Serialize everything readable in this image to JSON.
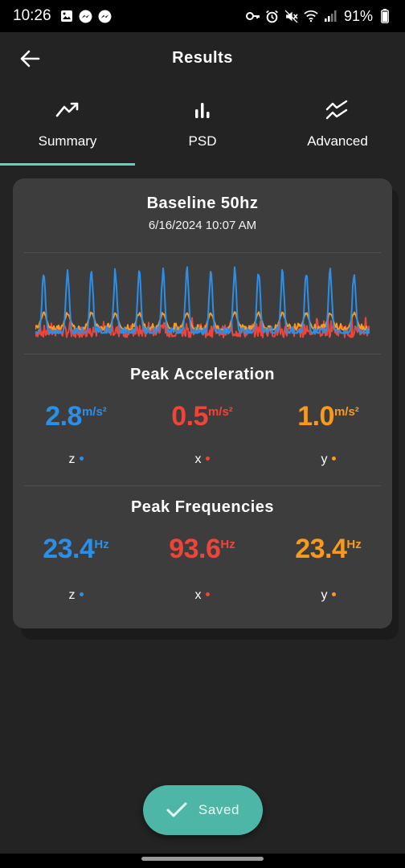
{
  "status_bar": {
    "time": "10:26",
    "battery": "91%",
    "left_icons": [
      "gallery-icon",
      "messenger-icon",
      "messenger-icon"
    ],
    "right_icons": [
      "key-icon",
      "alarm-icon",
      "mute-icon",
      "wifi-icon",
      "signal-icon",
      "battery-icon"
    ]
  },
  "header": {
    "title": "Results"
  },
  "tabs": [
    {
      "label": "Summary",
      "icon": "trend-icon",
      "active": true
    },
    {
      "label": "PSD",
      "icon": "bar-chart-icon",
      "active": false
    },
    {
      "label": "Advanced",
      "icon": "double-trend-icon",
      "active": false
    }
  ],
  "card": {
    "title": "Baseline 50hz",
    "date": "6/16/2024 10:07 AM",
    "peak_acceleration": {
      "title": "Peak Acceleration",
      "items": [
        {
          "axis": "z",
          "value": "2.8",
          "unit": "m/s²",
          "color": "#2b8fe8"
        },
        {
          "axis": "x",
          "value": "0.5",
          "unit": "m/s²",
          "color": "#f04438"
        },
        {
          "axis": "y",
          "value": "1.0",
          "unit": "m/s²",
          "color": "#f79a1e"
        }
      ]
    },
    "peak_frequencies": {
      "title": "Peak Frequencies",
      "items": [
        {
          "axis": "z",
          "value": "23.4",
          "unit": "Hz",
          "color": "#2b8fe8"
        },
        {
          "axis": "x",
          "value": "93.6",
          "unit": "Hz",
          "color": "#f04438"
        },
        {
          "axis": "y",
          "value": "23.4",
          "unit": "Hz",
          "color": "#f79a1e"
        }
      ]
    }
  },
  "saved_button": {
    "label": "Saved"
  },
  "chart_data": {
    "type": "line",
    "title": "",
    "xlabel": "",
    "ylabel": "",
    "grid": false,
    "legend": "none",
    "ylim": [
      0,
      100
    ],
    "series": [
      {
        "color": "#2b8fe8",
        "peaks": 14,
        "baseline": 16,
        "peak_value": 92
      },
      {
        "color": "#f79a1e",
        "peaks": 14,
        "baseline": 20,
        "peak_value": 40
      },
      {
        "color": "#f04438",
        "peaks": 0,
        "baseline": 18,
        "peak_value": 30
      }
    ]
  }
}
